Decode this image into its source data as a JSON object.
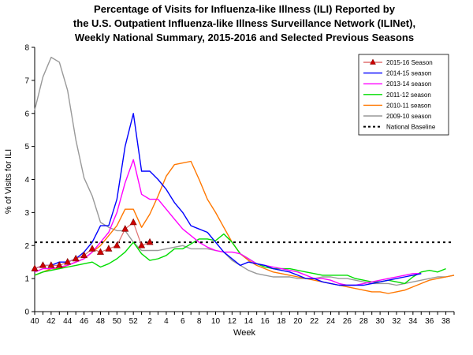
{
  "chart_data": {
    "type": "line",
    "title_lines": [
      "Percentage of Visits for Influenza-like Illness (ILI) Reported by",
      "the U.S. Outpatient Influenza-like Illness Surveillance Network (ILINet),",
      "Weekly National Summary, 2015-2016 and Selected Previous Seasons"
    ],
    "xlabel": "Week",
    "ylabel": "% of Visits for ILI",
    "ylim": [
      0,
      8
    ],
    "yticks": [
      "0",
      "1",
      "2",
      "3",
      "4",
      "5",
      "6",
      "7",
      "8"
    ],
    "x_tick_labels": [
      "40",
      "42",
      "44",
      "46",
      "48",
      "50",
      "52",
      "2",
      "4",
      "6",
      "8",
      "10",
      "12",
      "14",
      "16",
      "18",
      "20",
      "22",
      "24",
      "26",
      "28",
      "30",
      "32",
      "34",
      "36",
      "38"
    ],
    "weeks": [
      "40",
      "41",
      "42",
      "43",
      "44",
      "45",
      "46",
      "47",
      "48",
      "49",
      "50",
      "51",
      "52",
      "1",
      "2",
      "3",
      "4",
      "5",
      "6",
      "7",
      "8",
      "9",
      "10",
      "11",
      "12",
      "13",
      "14",
      "15",
      "16",
      "17",
      "18",
      "19",
      "20",
      "21",
      "22",
      "23",
      "24",
      "25",
      "26",
      "27",
      "28",
      "29",
      "30",
      "31",
      "32",
      "33",
      "34",
      "35",
      "36",
      "37",
      "38",
      "39"
    ],
    "legend_position": "top-right",
    "grid": false,
    "series": [
      {
        "name": "2015-16 Season",
        "color": "#e07070",
        "marker": "triangle",
        "marker_color": "#cc0000",
        "values": [
          1.3,
          1.4,
          1.4,
          1.4,
          1.5,
          1.6,
          1.7,
          1.9,
          1.8,
          1.9,
          2.0,
          2.5,
          2.7,
          2.0,
          2.1
        ]
      },
      {
        "name": "2014-15 season",
        "color": "#0000ff",
        "values": [
          1.3,
          1.4,
          1.4,
          1.5,
          1.5,
          1.6,
          1.8,
          2.1,
          2.6,
          2.6,
          3.4,
          5.0,
          6.0,
          4.25,
          4.25,
          4.0,
          3.7,
          3.3,
          3.0,
          2.6,
          2.5,
          2.4,
          2.1,
          1.8,
          1.6,
          1.4,
          1.5,
          1.45,
          1.4,
          1.3,
          1.25,
          1.2,
          1.1,
          1.0,
          1.0,
          0.9,
          0.85,
          0.8,
          0.8,
          0.8,
          0.8,
          0.85,
          0.9,
          0.95,
          1.0,
          1.05,
          1.1,
          1.15
        ]
      },
      {
        "name": "2013-14 season",
        "color": "#ff00ff",
        "values": [
          1.2,
          1.3,
          1.3,
          1.35,
          1.4,
          1.5,
          1.6,
          1.8,
          2.1,
          2.4,
          3.0,
          3.9,
          4.6,
          3.55,
          3.4,
          3.4,
          3.1,
          2.8,
          2.5,
          2.3,
          2.1,
          1.95,
          1.85,
          1.8,
          1.8,
          1.75,
          1.6,
          1.45,
          1.4,
          1.35,
          1.3,
          1.25,
          1.2,
          1.1,
          1.0,
          1.0,
          0.95,
          0.85,
          0.8,
          0.8,
          0.85,
          0.9,
          0.95,
          1.0,
          1.05,
          1.1,
          1.15,
          1.15
        ]
      },
      {
        "name": "2011-12 season",
        "color": "#00dd00",
        "values": [
          1.1,
          1.2,
          1.25,
          1.3,
          1.35,
          1.4,
          1.45,
          1.5,
          1.35,
          1.45,
          1.6,
          1.8,
          2.1,
          1.75,
          1.55,
          1.6,
          1.7,
          1.9,
          1.9,
          2.05,
          2.2,
          2.2,
          2.15,
          2.35,
          2.1,
          1.75,
          1.6,
          1.45,
          1.35,
          1.3,
          1.3,
          1.3,
          1.25,
          1.2,
          1.15,
          1.1,
          1.1,
          1.1,
          1.1,
          1.0,
          0.95,
          0.9,
          0.9,
          0.95,
          0.9,
          0.85,
          1.05,
          1.2,
          1.25,
          1.2,
          1.3
        ]
      },
      {
        "name": "2010-11 season",
        "color": "#ff7700",
        "values": [
          1.1,
          1.2,
          1.3,
          1.3,
          1.4,
          1.5,
          1.6,
          1.8,
          2.0,
          2.3,
          2.6,
          3.1,
          3.1,
          2.55,
          2.95,
          3.5,
          4.1,
          4.45,
          4.5,
          4.55,
          4.0,
          3.4,
          3.0,
          2.55,
          2.1,
          1.75,
          1.55,
          1.4,
          1.3,
          1.2,
          1.15,
          1.1,
          1.05,
          1.0,
          0.95,
          0.9,
          0.85,
          0.8,
          0.75,
          0.7,
          0.65,
          0.6,
          0.6,
          0.55,
          0.6,
          0.65,
          0.75,
          0.85,
          0.95,
          1.0,
          1.05,
          1.1
        ]
      },
      {
        "name": "2009-10 season",
        "color": "#999999",
        "values": [
          6.1,
          7.1,
          7.7,
          7.55,
          6.7,
          5.2,
          4.05,
          3.5,
          2.7,
          2.55,
          2.45,
          2.45,
          2.1,
          1.85,
          1.85,
          1.85,
          1.9,
          1.95,
          2.0,
          1.9,
          1.9,
          1.9,
          1.85,
          1.8,
          1.55,
          1.4,
          1.25,
          1.15,
          1.1,
          1.05,
          1.05,
          1.05,
          1.0,
          1.0,
          1.0,
          1.05,
          1.05,
          1.0,
          1.0,
          0.95,
          0.9,
          0.85,
          0.85,
          0.85,
          0.8,
          0.85,
          0.9,
          0.95,
          1.0,
          1.05,
          1.05,
          1.1
        ]
      },
      {
        "name": "National Baseline",
        "color": "#000000",
        "dashed": true,
        "values": [
          2.1
        ]
      }
    ]
  }
}
